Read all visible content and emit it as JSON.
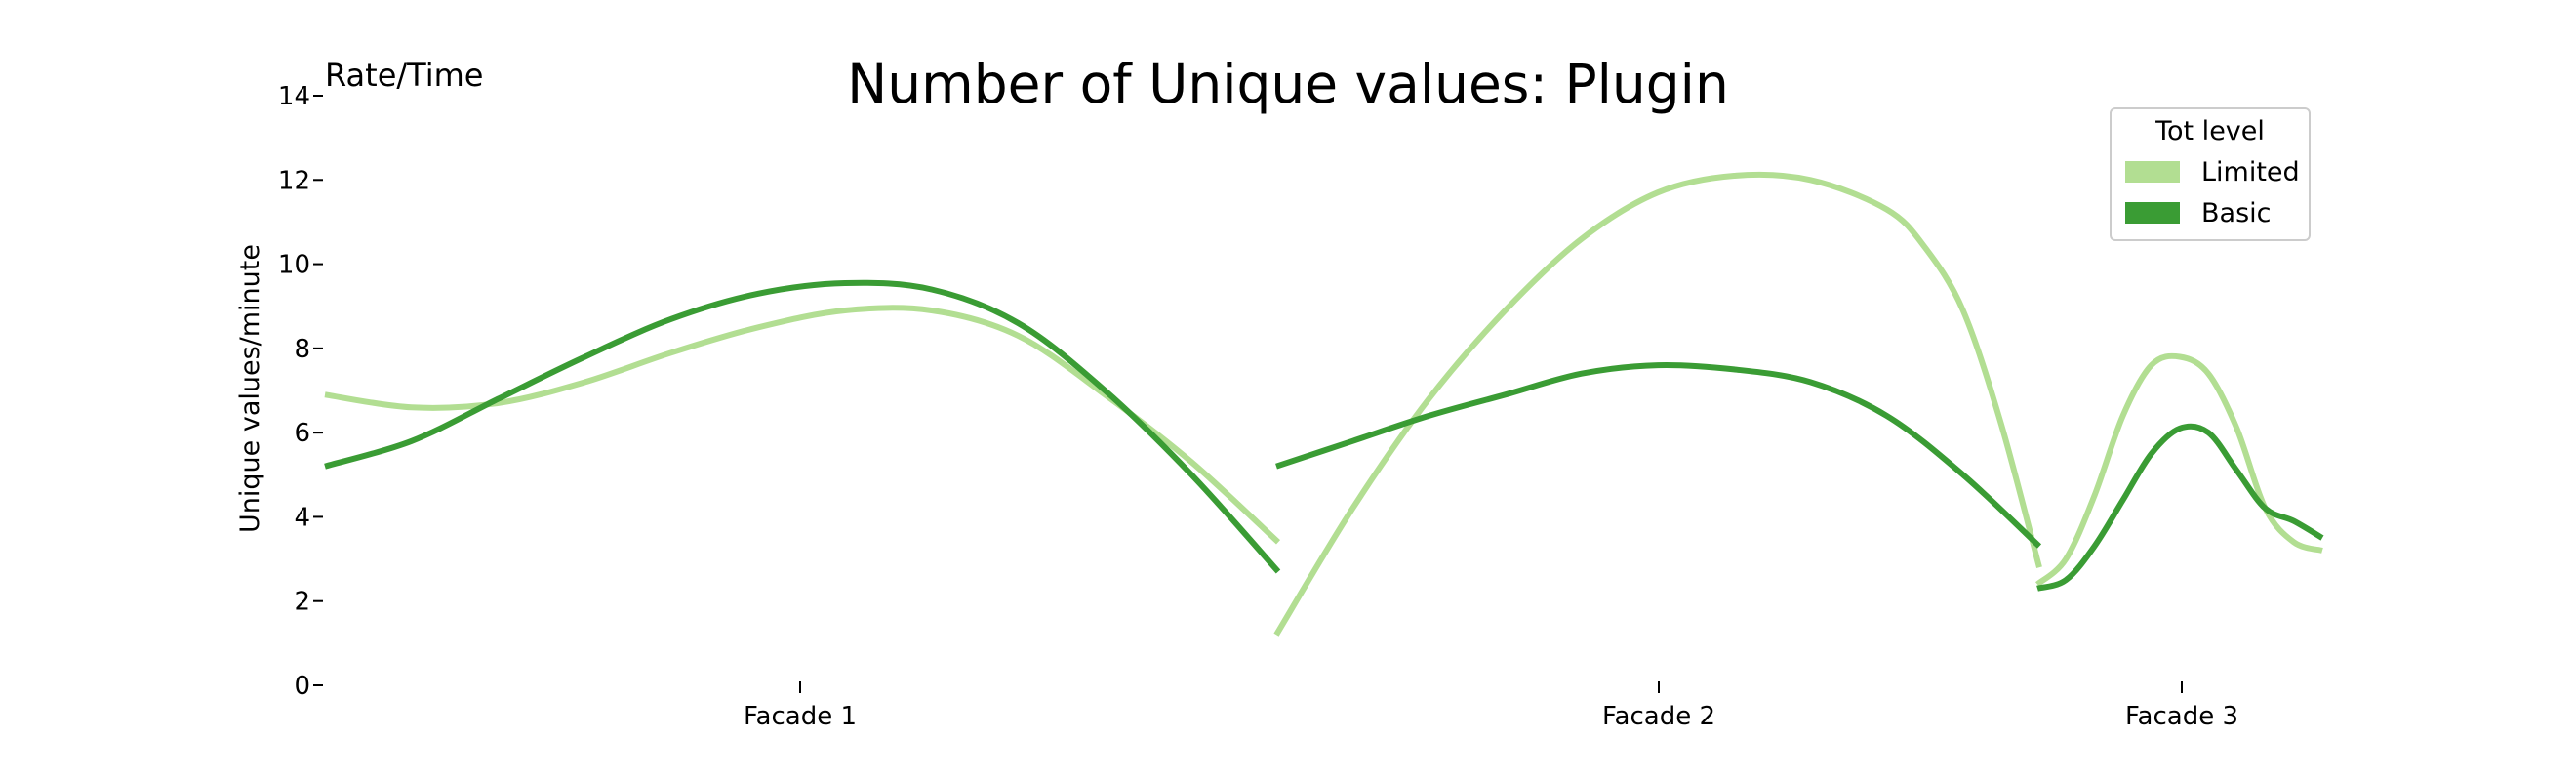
{
  "chart_data": {
    "type": "line",
    "title": "Number of Unique values: Plugin",
    "corner_label": "Rate/Time",
    "ylabel": "Unique values/minute",
    "xlabel": "",
    "ylim": [
      0,
      14
    ],
    "yticks": [
      "0",
      "2",
      "4",
      "6",
      "8",
      "10",
      "12",
      "14"
    ],
    "grid": false,
    "legend": {
      "title": "Tot level",
      "placement": "top-right"
    },
    "categories": [
      "Facade 1",
      "Facade 2",
      "Facade 3"
    ],
    "series": [
      {
        "name": "Limited",
        "color": "#b2de92",
        "segments": [
          {
            "category": "Facade 1",
            "points": [
              [
                0.0,
                6.9
              ],
              [
                0.1,
                6.6
              ],
              [
                0.2,
                6.7
              ],
              [
                0.3,
                7.2
              ],
              [
                0.4,
                7.9
              ],
              [
                0.5,
                8.5
              ],
              [
                0.6,
                8.9
              ],
              [
                0.7,
                8.9
              ],
              [
                0.8,
                8.3
              ],
              [
                0.9,
                6.9
              ],
              [
                1.0,
                5.3
              ],
              [
                1.1,
                3.4
              ]
            ]
          },
          {
            "category": "Facade 2",
            "points": [
              [
                0.0,
                1.2
              ],
              [
                0.1,
                4.2
              ],
              [
                0.2,
                6.8
              ],
              [
                0.3,
                8.9
              ],
              [
                0.4,
                10.6
              ],
              [
                0.5,
                11.7
              ],
              [
                0.6,
                12.1
              ],
              [
                0.7,
                12.0
              ],
              [
                0.8,
                11.3
              ],
              [
                0.85,
                10.4
              ],
              [
                0.9,
                8.9
              ],
              [
                0.95,
                6.2
              ],
              [
                1.0,
                2.8
              ]
            ]
          },
          {
            "category": "Facade 3",
            "points": [
              [
                0.0,
                2.4
              ],
              [
                0.1,
                3.0
              ],
              [
                0.2,
                4.5
              ],
              [
                0.3,
                6.4
              ],
              [
                0.4,
                7.6
              ],
              [
                0.5,
                7.8
              ],
              [
                0.6,
                7.4
              ],
              [
                0.7,
                6.1
              ],
              [
                0.8,
                4.2
              ],
              [
                0.9,
                3.4
              ],
              [
                1.0,
                3.2
              ]
            ]
          }
        ]
      },
      {
        "name": "Basic",
        "color": "#3a9c34",
        "segments": [
          {
            "category": "Facade 1",
            "points": [
              [
                0.0,
                5.2
              ],
              [
                0.1,
                5.8
              ],
              [
                0.2,
                6.8
              ],
              [
                0.3,
                7.8
              ],
              [
                0.4,
                8.7
              ],
              [
                0.5,
                9.3
              ],
              [
                0.6,
                9.55
              ],
              [
                0.7,
                9.4
              ],
              [
                0.8,
                8.6
              ],
              [
                0.9,
                7.0
              ],
              [
                1.0,
                5.0
              ],
              [
                1.1,
                2.7
              ]
            ]
          },
          {
            "category": "Facade 2",
            "points": [
              [
                0.0,
                5.2
              ],
              [
                0.1,
                5.8
              ],
              [
                0.2,
                6.4
              ],
              [
                0.3,
                6.9
              ],
              [
                0.4,
                7.4
              ],
              [
                0.5,
                7.6
              ],
              [
                0.6,
                7.5
              ],
              [
                0.7,
                7.2
              ],
              [
                0.8,
                6.4
              ],
              [
                0.9,
                5.0
              ],
              [
                1.0,
                3.3
              ]
            ]
          },
          {
            "category": "Facade 3",
            "points": [
              [
                0.0,
                2.3
              ],
              [
                0.1,
                2.5
              ],
              [
                0.2,
                3.3
              ],
              [
                0.3,
                4.4
              ],
              [
                0.4,
                5.5
              ],
              [
                0.5,
                6.1
              ],
              [
                0.6,
                6.0
              ],
              [
                0.7,
                5.1
              ],
              [
                0.8,
                4.2
              ],
              [
                0.9,
                3.9
              ],
              [
                1.0,
                3.5
              ]
            ]
          }
        ]
      }
    ]
  }
}
